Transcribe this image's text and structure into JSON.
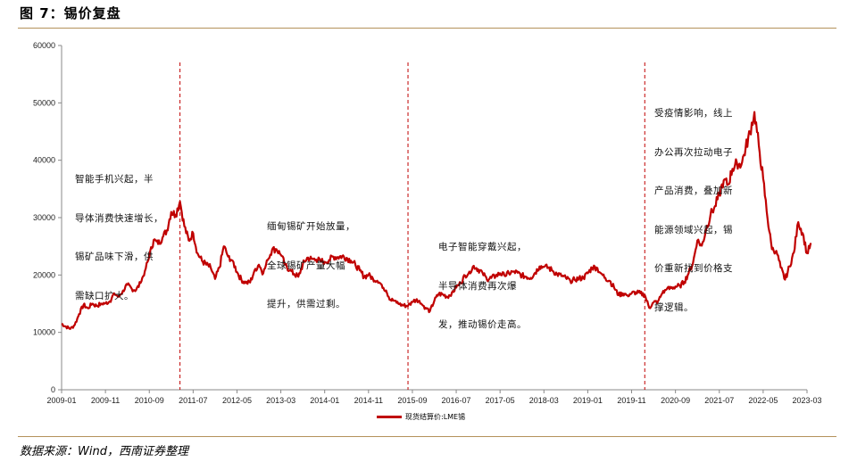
{
  "figure": {
    "title": "图 7：锡价复盘",
    "source": "数据来源：Wind，西南证券整理"
  },
  "chart_data": {
    "type": "line",
    "xlabel": "",
    "ylabel": "",
    "ylim": [
      0,
      60000
    ],
    "yticks": [
      0,
      10000,
      20000,
      30000,
      40000,
      50000,
      60000
    ],
    "xticks": [
      "2009-01",
      "2009-11",
      "2010-09",
      "2011-07",
      "2012-05",
      "2013-03",
      "2014-01",
      "2014-11",
      "2015-09",
      "2016-07",
      "2017-05",
      "2018-03",
      "2019-01",
      "2019-11",
      "2020-09",
      "2021-07",
      "2022-05",
      "2023-03"
    ],
    "x_range": [
      "2009-01",
      "2023-03"
    ],
    "grid": false,
    "legend_position": "bottom-center",
    "series": [
      {
        "name": "现货结算价:LME锡",
        "color": "#c00000",
        "points": [
          [
            "2009-01",
            11500
          ],
          [
            "2009-02",
            11000
          ],
          [
            "2009-03",
            10600
          ],
          [
            "2009-04",
            11300
          ],
          [
            "2009-05",
            13200
          ],
          [
            "2009-06",
            14800
          ],
          [
            "2009-07",
            14200
          ],
          [
            "2009-08",
            15000
          ],
          [
            "2009-09",
            14600
          ],
          [
            "2009-10",
            15000
          ],
          [
            "2009-11",
            15100
          ],
          [
            "2009-12",
            15400
          ],
          [
            "2010-01",
            16800
          ],
          [
            "2010-02",
            16200
          ],
          [
            "2010-03",
            17300
          ],
          [
            "2010-04",
            18300
          ],
          [
            "2010-05",
            17600
          ],
          [
            "2010-06",
            17400
          ],
          [
            "2010-07",
            18600
          ],
          [
            "2010-08",
            20700
          ],
          [
            "2010-09",
            23200
          ],
          [
            "2010-10",
            26100
          ],
          [
            "2010-11",
            25400
          ],
          [
            "2010-12",
            26500
          ],
          [
            "2011-01",
            27800
          ],
          [
            "2011-02",
            31000
          ],
          [
            "2011-03",
            30500
          ],
          [
            "2011-04",
            32800
          ],
          [
            "2011-05",
            28500
          ],
          [
            "2011-06",
            26000
          ],
          [
            "2011-07",
            27300
          ],
          [
            "2011-08",
            23800
          ],
          [
            "2011-09",
            22500
          ],
          [
            "2011-10",
            21800
          ],
          [
            "2011-11",
            21300
          ],
          [
            "2011-12",
            19300
          ],
          [
            "2012-01",
            21300
          ],
          [
            "2012-02",
            25000
          ],
          [
            "2012-03",
            23200
          ],
          [
            "2012-04",
            22500
          ],
          [
            "2012-05",
            20500
          ],
          [
            "2012-06",
            19200
          ],
          [
            "2012-07",
            18600
          ],
          [
            "2012-08",
            18700
          ],
          [
            "2012-09",
            20800
          ],
          [
            "2012-10",
            21800
          ],
          [
            "2012-11",
            20300
          ],
          [
            "2012-12",
            22600
          ],
          [
            "2013-01",
            24400
          ],
          [
            "2013-02",
            24500
          ],
          [
            "2013-03",
            23500
          ],
          [
            "2013-04",
            21800
          ],
          [
            "2013-05",
            20800
          ],
          [
            "2013-06",
            20200
          ],
          [
            "2013-07",
            19700
          ],
          [
            "2013-08",
            21800
          ],
          [
            "2013-09",
            23000
          ],
          [
            "2013-10",
            22800
          ],
          [
            "2013-11",
            22700
          ],
          [
            "2013-12",
            22500
          ],
          [
            "2014-01",
            22300
          ],
          [
            "2014-02",
            22600
          ],
          [
            "2014-03",
            23200
          ],
          [
            "2014-04",
            23100
          ],
          [
            "2014-05",
            23300
          ],
          [
            "2014-06",
            23000
          ],
          [
            "2014-07",
            22500
          ],
          [
            "2014-08",
            21800
          ],
          [
            "2014-09",
            20800
          ],
          [
            "2014-10",
            19700
          ],
          [
            "2014-11",
            20000
          ],
          [
            "2014-12",
            19400
          ],
          [
            "2015-01",
            19000
          ],
          [
            "2015-02",
            18300
          ],
          [
            "2015-03",
            17300
          ],
          [
            "2015-04",
            15700
          ],
          [
            "2015-05",
            15500
          ],
          [
            "2015-06",
            14900
          ],
          [
            "2015-07",
            14700
          ],
          [
            "2015-08",
            14600
          ],
          [
            "2015-09",
            15300
          ],
          [
            "2015-10",
            15800
          ],
          [
            "2015-11",
            15000
          ],
          [
            "2015-12",
            14300
          ],
          [
            "2016-01",
            13700
          ],
          [
            "2016-02",
            15500
          ],
          [
            "2016-03",
            16700
          ],
          [
            "2016-04",
            16600
          ],
          [
            "2016-05",
            16200
          ],
          [
            "2016-06",
            16900
          ],
          [
            "2016-07",
            17800
          ],
          [
            "2016-08",
            18600
          ],
          [
            "2016-09",
            19900
          ],
          [
            "2016-10",
            20600
          ],
          [
            "2016-11",
            21600
          ],
          [
            "2016-12",
            21000
          ],
          [
            "2017-01",
            20400
          ],
          [
            "2017-02",
            19200
          ],
          [
            "2017-03",
            19500
          ],
          [
            "2017-04",
            19800
          ],
          [
            "2017-05",
            20300
          ],
          [
            "2017-06",
            19900
          ],
          [
            "2017-07",
            20300
          ],
          [
            "2017-08",
            20600
          ],
          [
            "2017-09",
            20400
          ],
          [
            "2017-10",
            19900
          ],
          [
            "2017-11",
            19700
          ],
          [
            "2017-12",
            19500
          ],
          [
            "2018-01",
            20400
          ],
          [
            "2018-02",
            21500
          ],
          [
            "2018-03",
            21400
          ],
          [
            "2018-04",
            21300
          ],
          [
            "2018-05",
            20700
          ],
          [
            "2018-06",
            20200
          ],
          [
            "2018-07",
            19800
          ],
          [
            "2018-08",
            19500
          ],
          [
            "2018-09",
            19000
          ],
          [
            "2018-10",
            19200
          ],
          [
            "2018-11",
            19400
          ],
          [
            "2018-12",
            19500
          ],
          [
            "2019-01",
            20300
          ],
          [
            "2019-02",
            21300
          ],
          [
            "2019-03",
            21300
          ],
          [
            "2019-04",
            20300
          ],
          [
            "2019-05",
            19500
          ],
          [
            "2019-06",
            19000
          ],
          [
            "2019-07",
            17800
          ],
          [
            "2019-08",
            16500
          ],
          [
            "2019-09",
            16800
          ],
          [
            "2019-10",
            16500
          ],
          [
            "2019-11",
            16800
          ],
          [
            "2019-12",
            17000
          ],
          [
            "2020-01",
            16800
          ],
          [
            "2020-02",
            16500
          ],
          [
            "2020-03",
            14300
          ],
          [
            "2020-04",
            15200
          ],
          [
            "2020-05",
            15400
          ],
          [
            "2020-06",
            16800
          ],
          [
            "2020-07",
            17500
          ],
          [
            "2020-08",
            17700
          ],
          [
            "2020-09",
            18000
          ],
          [
            "2020-10",
            18100
          ],
          [
            "2020-11",
            18800
          ],
          [
            "2020-12",
            20300
          ],
          [
            "2021-01",
            22100
          ],
          [
            "2021-02",
            26000
          ],
          [
            "2021-03",
            25100
          ],
          [
            "2021-04",
            27900
          ],
          [
            "2021-05",
            30500
          ],
          [
            "2021-06",
            32000
          ],
          [
            "2021-07",
            34000
          ],
          [
            "2021-08",
            36500
          ],
          [
            "2021-09",
            35800
          ],
          [
            "2021-10",
            38500
          ],
          [
            "2021-11",
            39600
          ],
          [
            "2021-12",
            39100
          ],
          [
            "2022-01",
            42100
          ],
          [
            "2022-02",
            44900
          ],
          [
            "2022-03",
            48400
          ],
          [
            "2022-04",
            42600
          ],
          [
            "2022-05",
            36800
          ],
          [
            "2022-06",
            29800
          ],
          [
            "2022-07",
            24500
          ],
          [
            "2022-08",
            24200
          ],
          [
            "2022-09",
            21300
          ],
          [
            "2022-10",
            19200
          ],
          [
            "2022-11",
            21500
          ],
          [
            "2022-12",
            23900
          ],
          [
            "2023-01",
            29200
          ],
          [
            "2023-02",
            27300
          ],
          [
            "2023-03",
            23800
          ],
          [
            "2023-04",
            25500
          ]
        ]
      }
    ],
    "events": [
      {
        "x": "2011-04",
        "color": "#c00000",
        "style": "dashed"
      },
      {
        "x": "2015-08",
        "color": "#c00000",
        "style": "dashed"
      },
      {
        "x": "2020-02",
        "color": "#c00000",
        "style": "dashed"
      }
    ],
    "annotations": [
      {
        "lines": [
          "智能手机兴起，半",
          "导体消费快速增长，",
          "锡矿品味下滑，供",
          "需缺口扩大。"
        ]
      },
      {
        "lines": [
          "缅甸锡矿开始放量，",
          "全球锡矿产量大幅",
          "提升，供需过剩。"
        ]
      },
      {
        "lines": [
          "电子智能穿戴兴起，",
          "半导体消费再次爆",
          "发，推动锡价走高。"
        ]
      },
      {
        "lines": [
          "受疫情影响，线上",
          "办公再次拉动电子",
          "产品消费，叠加新",
          "能源领域兴起，锡",
          "价重新找到价格支",
          "撑逻辑。"
        ]
      }
    ]
  }
}
